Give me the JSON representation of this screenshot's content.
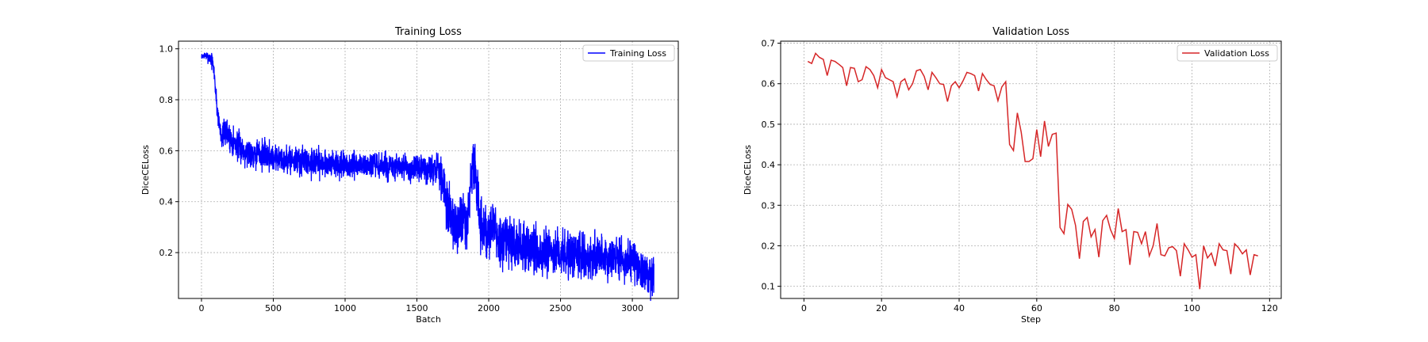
{
  "chart_data": [
    {
      "type": "line",
      "title": "Training Loss",
      "xlabel": "Batch",
      "ylabel": "DiceCELoss",
      "xlim": [
        -160,
        3320
      ],
      "ylim": [
        0.02,
        1.03
      ],
      "xticks": [
        0,
        500,
        1000,
        1500,
        2000,
        2500,
        3000
      ],
      "yticks": [
        0.2,
        0.4,
        0.6,
        0.8,
        1.0
      ],
      "ytick_labels": [
        "0.2",
        "0.4",
        "0.6",
        "0.8",
        "1.0"
      ],
      "grid": true,
      "legend": "top-right",
      "series": [
        {
          "name": "Training Loss",
          "color": "#0000ff",
          "anchors": [
            [
              0,
              0.97
            ],
            [
              20,
              0.975
            ],
            [
              40,
              0.97
            ],
            [
              60,
              0.965
            ],
            [
              75,
              0.95
            ],
            [
              90,
              0.9
            ],
            [
              100,
              0.82
            ],
            [
              110,
              0.76
            ],
            [
              125,
              0.7
            ],
            [
              140,
              0.66
            ],
            [
              170,
              0.67
            ],
            [
              200,
              0.65
            ],
            [
              250,
              0.62
            ],
            [
              300,
              0.6
            ],
            [
              400,
              0.59
            ],
            [
              500,
              0.575
            ],
            [
              600,
              0.565
            ],
            [
              700,
              0.56
            ],
            [
              800,
              0.555
            ],
            [
              900,
              0.55
            ],
            [
              1000,
              0.535
            ],
            [
              1100,
              0.545
            ],
            [
              1200,
              0.54
            ],
            [
              1300,
              0.535
            ],
            [
              1400,
              0.53
            ],
            [
              1500,
              0.53
            ],
            [
              1600,
              0.525
            ],
            [
              1650,
              0.52
            ],
            [
              1680,
              0.48
            ],
            [
              1700,
              0.42
            ],
            [
              1720,
              0.36
            ],
            [
              1750,
              0.33
            ],
            [
              1800,
              0.32
            ],
            [
              1850,
              0.31
            ],
            [
              1880,
              0.52
            ],
            [
              1900,
              0.55
            ],
            [
              1920,
              0.45
            ],
            [
              1940,
              0.3
            ],
            [
              1980,
              0.27
            ],
            [
              2000,
              0.26
            ],
            [
              2030,
              0.33
            ],
            [
              2060,
              0.25
            ],
            [
              2100,
              0.24
            ],
            [
              2200,
              0.23
            ],
            [
              2300,
              0.22
            ],
            [
              2400,
              0.2
            ],
            [
              2500,
              0.2
            ],
            [
              2600,
              0.19
            ],
            [
              2700,
              0.18
            ],
            [
              2800,
              0.18
            ],
            [
              2900,
              0.18
            ],
            [
              3000,
              0.16
            ],
            [
              3050,
              0.14
            ],
            [
              3100,
              0.12
            ],
            [
              3150,
              0.1
            ]
          ],
          "noise": [
            [
              0,
              0.004
            ],
            [
              100,
              0.02
            ],
            [
              200,
              0.03
            ],
            [
              1600,
              0.025
            ],
            [
              1700,
              0.05
            ],
            [
              2000,
              0.05
            ],
            [
              3150,
              0.04
            ]
          ],
          "n_points": 3160,
          "seed": 7
        }
      ]
    },
    {
      "type": "line",
      "title": "Validation Loss",
      "xlabel": "Step",
      "ylabel": "DiceCELoss",
      "xlim": [
        -6,
        123
      ],
      "ylim": [
        0.07,
        0.705
      ],
      "xticks": [
        0,
        20,
        40,
        60,
        80,
        100,
        120
      ],
      "yticks": [
        0.1,
        0.2,
        0.3,
        0.4,
        0.5,
        0.6,
        0.7
      ],
      "ytick_labels": [
        "0.1",
        "0.2",
        "0.3",
        "0.4",
        "0.5",
        "0.6",
        "0.7"
      ],
      "grid": true,
      "legend": "top-right",
      "series": [
        {
          "name": "Validation Loss",
          "color": "#d62728",
          "x": [
            1,
            2,
            3,
            4,
            5,
            6,
            7,
            8,
            9,
            10,
            11,
            12,
            13,
            14,
            15,
            16,
            17,
            18,
            19,
            20,
            21,
            22,
            23,
            24,
            25,
            26,
            27,
            28,
            29,
            30,
            31,
            32,
            33,
            34,
            35,
            36,
            37,
            38,
            39,
            40,
            41,
            42,
            43,
            44,
            45,
            46,
            47,
            48,
            49,
            50,
            51,
            52,
            53,
            54,
            55,
            56,
            57,
            58,
            59,
            60,
            61,
            62,
            63,
            64,
            65,
            66,
            67,
            68,
            69,
            70,
            71,
            72,
            73,
            74,
            75,
            76,
            77,
            78,
            79,
            80,
            81,
            82,
            83,
            84,
            85,
            86,
            87,
            88,
            89,
            90,
            91,
            92,
            93,
            94,
            95,
            96,
            97,
            98,
            99,
            100,
            101,
            102,
            103,
            104,
            105,
            106,
            107,
            108,
            109,
            110,
            111,
            112,
            113,
            114,
            115,
            116,
            117
          ],
          "y": [
            0.655,
            0.65,
            0.675,
            0.665,
            0.66,
            0.62,
            0.658,
            0.655,
            0.648,
            0.64,
            0.595,
            0.64,
            0.638,
            0.605,
            0.61,
            0.642,
            0.635,
            0.62,
            0.59,
            0.635,
            0.615,
            0.61,
            0.605,
            0.568,
            0.605,
            0.612,
            0.585,
            0.6,
            0.632,
            0.635,
            0.618,
            0.585,
            0.628,
            0.615,
            0.6,
            0.598,
            0.556,
            0.595,
            0.605,
            0.59,
            0.607,
            0.628,
            0.625,
            0.62,
            0.582,
            0.625,
            0.61,
            0.598,
            0.595,
            0.558,
            0.592,
            0.605,
            0.45,
            0.435,
            0.528,
            0.48,
            0.408,
            0.408,
            0.415,
            0.487,
            0.42,
            0.508,
            0.445,
            0.475,
            0.478,
            0.245,
            0.23,
            0.302,
            0.29,
            0.25,
            0.168,
            0.26,
            0.27,
            0.222,
            0.24,
            0.172,
            0.262,
            0.275,
            0.24,
            0.218,
            0.292,
            0.235,
            0.24,
            0.153,
            0.235,
            0.233,
            0.205,
            0.235,
            0.175,
            0.2,
            0.255,
            0.178,
            0.175,
            0.195,
            0.198,
            0.188,
            0.125,
            0.205,
            0.19,
            0.172,
            0.178,
            0.093,
            0.2,
            0.17,
            0.182,
            0.15,
            0.205,
            0.19,
            0.188,
            0.13,
            0.205,
            0.195,
            0.18,
            0.19,
            0.128,
            0.178,
            0.175
          ]
        }
      ]
    }
  ]
}
